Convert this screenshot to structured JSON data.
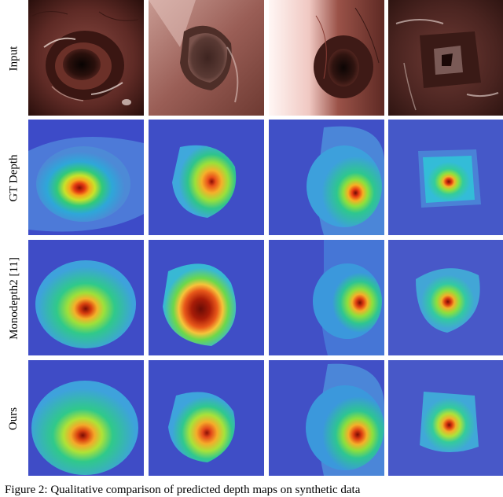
{
  "figure": {
    "row_labels": [
      "Input",
      "GT Depth",
      "Monodepth2 [11]",
      "Ours"
    ],
    "caption": "Figure 2: Qualitative comparison of predicted depth maps on synthetic data"
  }
}
